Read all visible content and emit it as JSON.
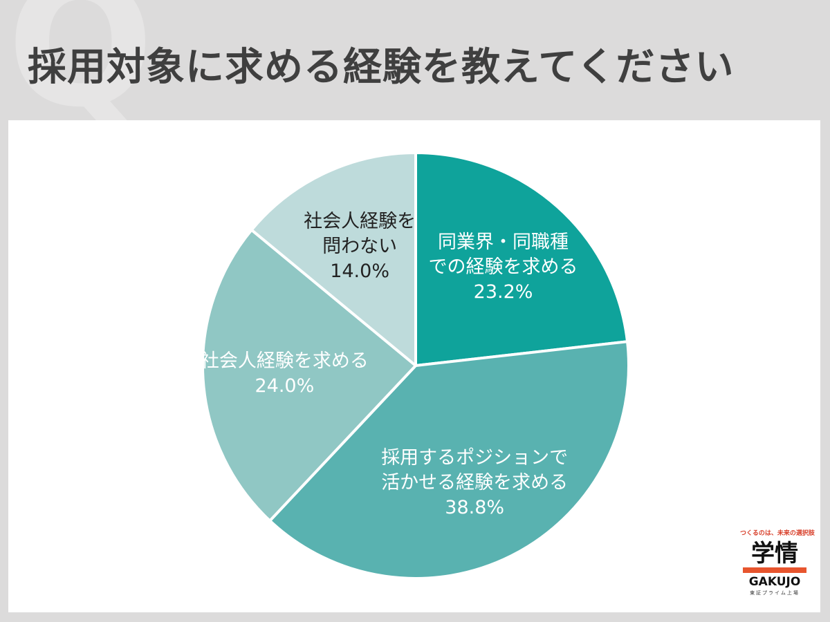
{
  "watermark": "Q",
  "title": "採用対象に求める経験を教えてください",
  "chart_data": {
    "type": "pie",
    "title": "採用対象に求める経験を教えてください",
    "start_angle_deg": 0,
    "direction": "clockwise",
    "legend": "none",
    "slices": [
      {
        "label_lines": [
          "同業界・同職種",
          "での経験を求める"
        ],
        "value": 23.2,
        "value_label": "23.2%",
        "color": "#0fa39b",
        "label_color": "#ffffff"
      },
      {
        "label_lines": [
          "採用するポジションで",
          "活かせる経験を求める"
        ],
        "value": 38.8,
        "value_label": "38.8%",
        "color": "#59b2b0",
        "label_color": "#ffffff"
      },
      {
        "label_lines": [
          "社会人経験を求める"
        ],
        "value": 24.0,
        "value_label": "24.0%",
        "color": "#90c7c4",
        "label_color": "#ffffff"
      },
      {
        "label_lines": [
          "社会人経験を",
          "問わない"
        ],
        "value": 14.0,
        "value_label": "14.0%",
        "color": "#bedbdb",
        "label_color": "#222222"
      }
    ]
  },
  "brand": {
    "tagline": "つくるのは、未来の選択肢",
    "name_kanji": "学情",
    "name_roman": "GAKUJO",
    "market": "東証プライム上場"
  }
}
